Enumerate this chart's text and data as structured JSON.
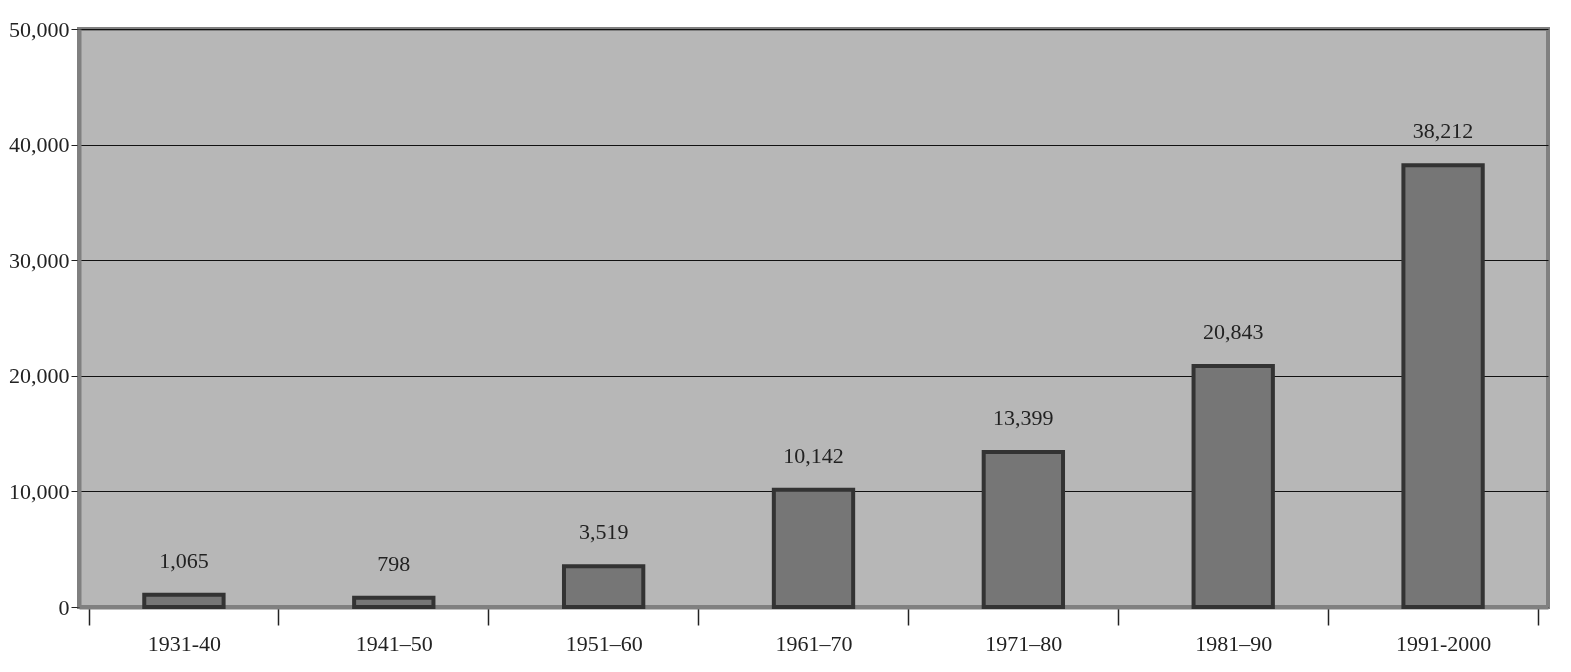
{
  "chart_data": {
    "type": "bar",
    "categories": [
      "1931-40",
      "1941–50",
      "1951–60",
      "1961–70",
      "1971–80",
      "1981–90",
      "1991-2000"
    ],
    "values": [
      1065,
      798,
      3519,
      10142,
      13399,
      20843,
      38212
    ],
    "value_labels": [
      "1,065",
      "798",
      "3,519",
      "10,142",
      "13,399",
      "20,843",
      "38,212"
    ],
    "color": "#767676",
    "ylim": [
      0,
      50000
    ],
    "yticks": [
      0,
      {
        "value": 10000,
        "label": "10,000"
      },
      {
        "value": 20000,
        "label": "20,000"
      },
      {
        "value": 30000,
        "label": "30,000"
      },
      {
        "value": 40000,
        "label": "40,000"
      },
      {
        "value": 50000,
        "label": "50,000"
      }
    ],
    "grid": "y"
  }
}
